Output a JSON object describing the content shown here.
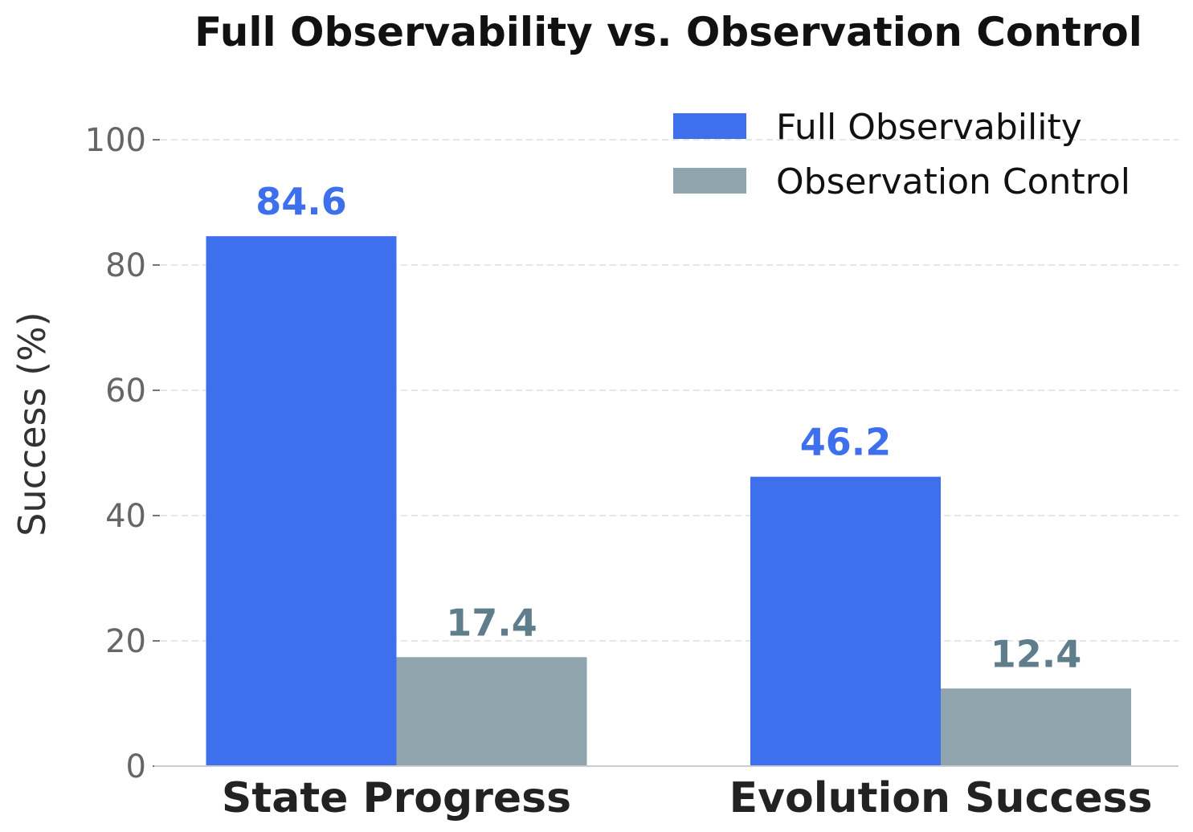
{
  "chart_data": {
    "type": "bar",
    "title": "Full Observability vs. Observation Control",
    "xlabel": "",
    "ylabel": "Success (%)",
    "ylim": [
      0,
      100
    ],
    "yticks": [
      0,
      20,
      40,
      60,
      80,
      100
    ],
    "grid": true,
    "legend_position": "top-right",
    "categories": [
      "State Progress",
      "Evolution Success"
    ],
    "series": [
      {
        "name": "Full Observability",
        "color": "#3e6fed",
        "label_color": "#3e6fed",
        "values": [
          84.6,
          46.2
        ],
        "labels": [
          "84.6",
          "46.2"
        ]
      },
      {
        "name": "Observation Control",
        "color": "#90a4ae",
        "label_color": "#607d8b",
        "values": [
          17.4,
          12.4
        ],
        "labels": [
          "17.4",
          "12.4"
        ]
      }
    ]
  }
}
